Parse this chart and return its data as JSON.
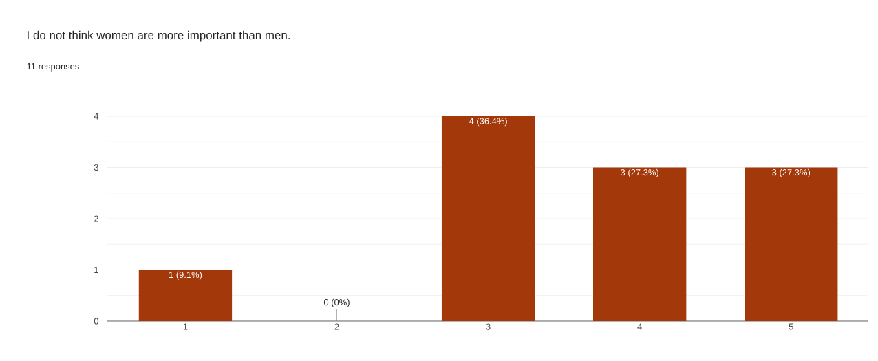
{
  "chart_data": {
    "type": "bar",
    "title": "I do not think women are more important than men.",
    "subtitle": "11 responses",
    "categories": [
      "1",
      "2",
      "3",
      "4",
      "5"
    ],
    "values": [
      1,
      0,
      4,
      3,
      3
    ],
    "color": "#a3390b",
    "value_labels": [
      "1 (9.1%)",
      "0 (0%)",
      "4 (36.4%)",
      "3 (27.3%)",
      "3 (27.3%)"
    ],
    "ylim": [
      0,
      4
    ],
    "yticks": [
      0,
      {
        "value": 0.5,
        "label": null
      },
      1,
      {
        "value": 1.5,
        "label": null
      },
      2,
      {
        "value": 2.5,
        "label": null
      },
      3,
      {
        "value": 3.5,
        "label": null
      },
      4
    ],
    "grid": "y"
  }
}
